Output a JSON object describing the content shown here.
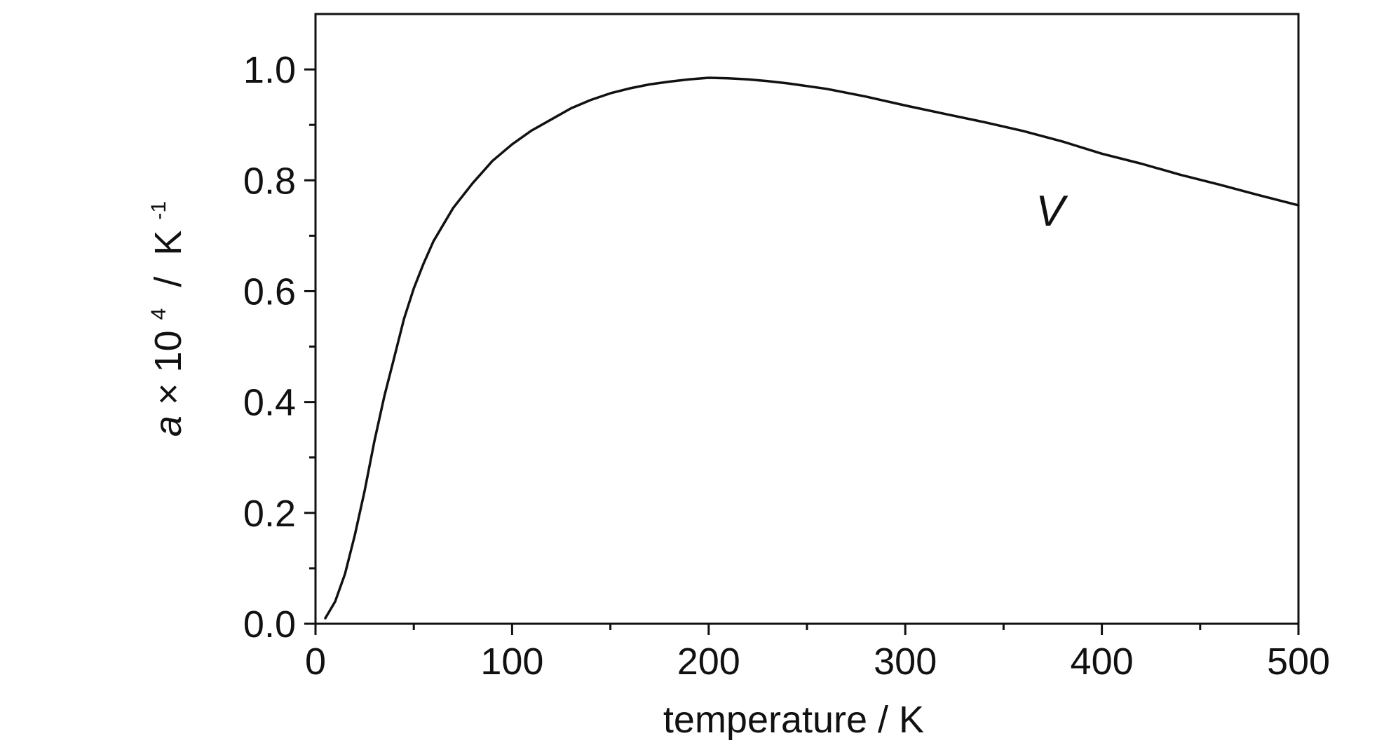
{
  "chart_data": {
    "type": "line",
    "title": "",
    "xlabel": "temperature / K",
    "ylabel": {
      "var": "a",
      "times": "×",
      "base": "10",
      "exp": "4",
      "sep": " / ",
      "unit": "K",
      "unit_exp": "-1"
    },
    "xlim": [
      0,
      500
    ],
    "ylim": [
      0,
      1.1
    ],
    "xticks": [
      0,
      100,
      200,
      300,
      400,
      500
    ],
    "xtick_labels": [
      "0",
      "100",
      "200",
      "300",
      "400",
      "500"
    ],
    "yticks": [
      0.0,
      0.2,
      0.4,
      0.6,
      0.8,
      1.0
    ],
    "ytick_labels": [
      "0.0",
      "0.2",
      "0.4",
      "0.6",
      "0.8",
      "1.0"
    ],
    "x_minor_step": 50,
    "y_minor_step": 0.1,
    "grid": false,
    "annotation": "V",
    "series": [
      {
        "x": [
          5,
          10,
          15,
          20,
          25,
          30,
          35,
          40,
          45,
          50,
          55,
          60,
          70,
          80,
          90,
          100,
          110,
          120,
          130,
          140,
          150,
          160,
          170,
          180,
          190,
          200,
          210,
          220,
          230,
          240,
          250,
          260,
          270,
          280,
          290,
          300,
          320,
          340,
          360,
          380,
          400,
          420,
          440,
          460,
          480,
          500
        ],
        "y": [
          0.01,
          0.04,
          0.09,
          0.16,
          0.24,
          0.33,
          0.41,
          0.48,
          0.55,
          0.605,
          0.65,
          0.69,
          0.75,
          0.795,
          0.835,
          0.865,
          0.89,
          0.91,
          0.93,
          0.945,
          0.957,
          0.966,
          0.973,
          0.978,
          0.982,
          0.985,
          0.984,
          0.982,
          0.979,
          0.975,
          0.97,
          0.965,
          0.958,
          0.951,
          0.943,
          0.935,
          0.92,
          0.905,
          0.889,
          0.87,
          0.848,
          0.83,
          0.81,
          0.792,
          0.773,
          0.755
        ],
        "color": "#111111"
      }
    ]
  }
}
